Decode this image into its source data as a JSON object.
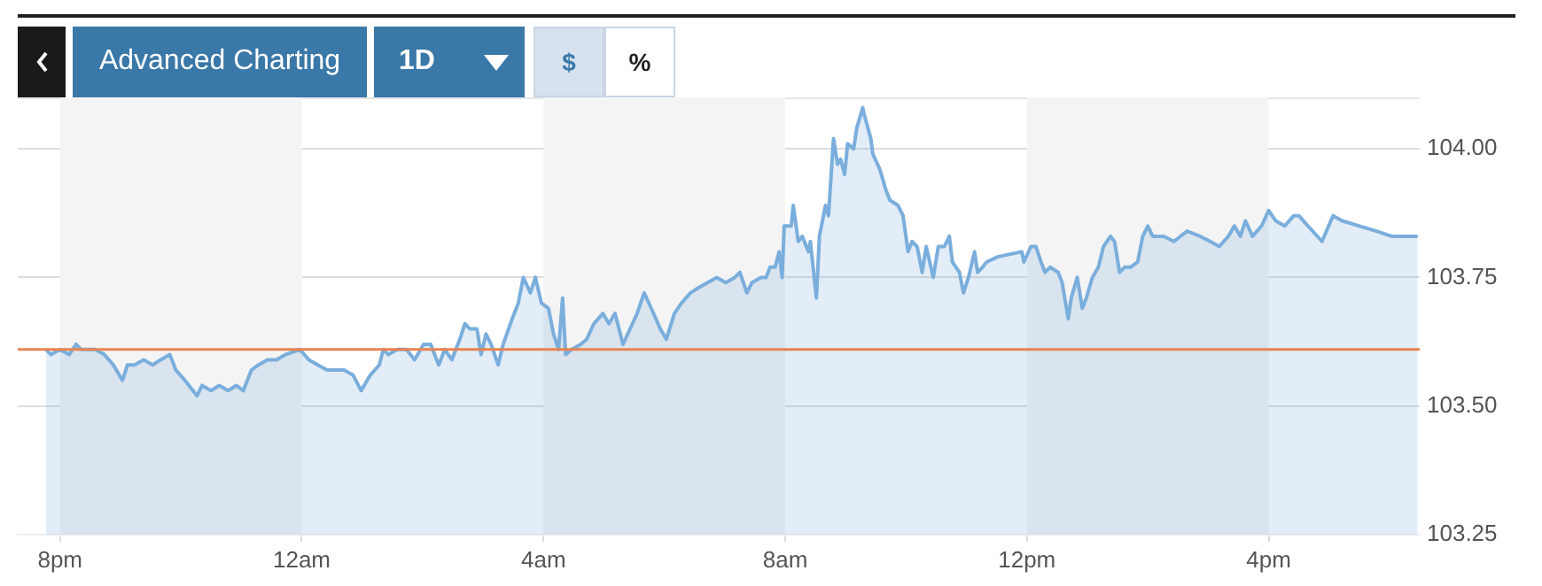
{
  "chart_data": {
    "type": "area",
    "annotations": [
      "Advanced Charting",
      "1D",
      "$",
      "%"
    ],
    "x": [
      "--01-01T19:46",
      "--01-01T19:51",
      "--01-01T20:00",
      "--01-01T20:09",
      "--01-01T20:16",
      "--01-01T20:21",
      "--01-01T20:35",
      "--01-01T20:44",
      "--01-01T20:53",
      "--01-01T21:02",
      "--01-01T21:07",
      "--01-01T21:14",
      "--01-01T21:23",
      "--01-01T21:32",
      "--01-01T21:40",
      "--01-01T21:49",
      "--01-01T21:55",
      "--01-01T22:04",
      "--01-01T22:12",
      "--01-01T22:16",
      "--01-01T22:21",
      "--01-01T22:30",
      "--01-01T22:38",
      "--01-01T22:47",
      "--01-01T22:55",
      "--01-01T23:02",
      "--01-01T23:10",
      "--01-01T23:17",
      "--01-01T23:26",
      "--01-01T23:35",
      "--01-01T23:44",
      "--01-01T23:58",
      "--01-02T00:07",
      "--01-02T00:16",
      "--01-02T00:25",
      "--01-02T00:33",
      "--01-02T00:42",
      "--01-02T00:51",
      "--01-02T00:59",
      "--01-02T01:08",
      "--01-02T01:17",
      "--01-02T01:21",
      "--01-02T01:26",
      "--01-02T01:35",
      "--01-02T01:44",
      "--01-02T01:52",
      "--01-02T02:01",
      "--01-02T02:08",
      "--01-02T02:16",
      "--01-02T02:22",
      "--01-02T02:29",
      "--01-02T02:37",
      "--01-02T02:42",
      "--01-02T02:47",
      "--01-02T02:54",
      "--01-02T02:58",
      "--01-02T03:03",
      "--01-02T03:08",
      "--01-02T03:15",
      "--01-02T03:20",
      "--01-02T03:29",
      "--01-02T03:35",
      "--01-02T03:40",
      "--01-02T03:47",
      "--01-02T03:52",
      "--01-02T03:58",
      "--01-02T04:05",
      "--01-02T04:10",
      "--01-02T04:15",
      "--01-02T04:19",
      "--01-02T04:22",
      "--01-02T04:28",
      "--01-02T04:37",
      "--01-02T04:43",
      "--01-02T04:50",
      "--01-02T04:59",
      "--01-02T05:05",
      "--01-02T05:11",
      "--01-02T05:19",
      "--01-02T05:26",
      "--01-02T05:33",
      "--01-02T05:40",
      "--01-02T05:47",
      "--01-02T05:56",
      "--01-02T06:02",
      "--01-02T06:10",
      "--01-02T06:17",
      "--01-02T06:26",
      "--01-02T06:34",
      "--01-02T06:43",
      "--01-02T06:52",
      "--01-02T07:01",
      "--01-02T07:10",
      "--01-02T07:15",
      "--01-02T07:22",
      "--01-02T07:27",
      "--01-02T07:36",
      "--01-02T07:41",
      "--01-02T07:45",
      "--01-02T07:50",
      "--01-02T07:54",
      "--01-02T07:57",
      "--01-02T07:59",
      "--01-02T08:06",
      "--01-02T08:08",
      "--01-02T08:13",
      "--01-02T08:17",
      "--01-02T08:23",
      "--01-02T08:25",
      "--01-02T08:31",
      "--01-02T08:34",
      "--01-02T08:40",
      "--01-02T08:43",
      "--01-02T08:48",
      "--01-02T08:52",
      "--01-02T08:55",
      "--01-02T08:59",
      "--01-02T09:02",
      "--01-02T09:08",
      "--01-02T09:11",
      "--01-02T09:17",
      "--01-02T09:18",
      "--01-02T09:25",
      "--01-02T09:27",
      "--01-02T09:34",
      "--01-02T09:40",
      "--01-02T09:44",
      "--01-02T09:52",
      "--01-02T09:57",
      "--01-02T10:02",
      "--01-02T10:06",
      "--01-02T10:11",
      "--01-02T10:16",
      "--01-02T10:20",
      "--01-02T10:27",
      "--01-02T10:32",
      "--01-02T10:38",
      "--01-02T10:43",
      "--01-02T10:46",
      "--01-02T10:53",
      "--01-02T10:57",
      "--01-02T11:02",
      "--01-02T11:08",
      "--01-02T11:11",
      "--01-02T11:16",
      "--01-02T11:20",
      "--01-02T11:31",
      "--01-02T11:55",
      "--01-02T11:57",
      "--01-02T12:04",
      "--01-02T12:09",
      "--01-02T12:14",
      "--01-02T12:18",
      "--01-02T12:23",
      "--01-02T12:31",
      "--01-02T12:35",
      "--01-02T12:41",
      "--01-02T12:44",
      "--01-02T12:50",
      "--01-02T12:55",
      "--01-02T12:59",
      "--01-02T13:05",
      "--01-02T13:11",
      "--01-02T13:16",
      "--01-02T13:23",
      "--01-02T13:27",
      "--01-02T13:32",
      "--01-02T13:37",
      "--01-02T13:43",
      "--01-02T13:50",
      "--01-02T13:55",
      "--01-02T14:00",
      "--01-02T14:05",
      "--01-02T14:16",
      "--01-02T14:26",
      "--01-02T14:39",
      "--01-02T14:52",
      "--01-02T15:02",
      "--01-02T15:11",
      "--01-02T15:20",
      "--01-02T15:26",
      "--01-02T15:32",
      "--01-02T15:37",
      "--01-02T15:44",
      "--01-02T15:53",
      "--01-02T16:00",
      "--01-02T16:07",
      "--01-02T16:16",
      "--01-02T16:25",
      "--01-02T16:30",
      "--01-02T16:39",
      "--01-02T16:53",
      "--01-02T17:04",
      "--01-02T17:13",
      "--01-02T17:30",
      "--01-02T17:47",
      "--01-02T18:02",
      "--01-02T18:05",
      "--01-02T18:28"
    ],
    "series": [
      {
        "color": "#7aaedc",
        "values": [
          103.61,
          103.6,
          103.61,
          103.6,
          103.62,
          103.61,
          103.61,
          103.6,
          103.58,
          103.55,
          103.58,
          103.58,
          103.59,
          103.58,
          103.59,
          103.6,
          103.57,
          103.55,
          103.53,
          103.52,
          103.54,
          103.53,
          103.54,
          103.53,
          103.54,
          103.53,
          103.57,
          103.58,
          103.59,
          103.59,
          103.6,
          103.61,
          103.59,
          103.58,
          103.57,
          103.57,
          103.57,
          103.56,
          103.53,
          103.56,
          103.58,
          103.61,
          103.6,
          103.61,
          103.61,
          103.59,
          103.62,
          103.62,
          103.58,
          103.61,
          103.59,
          103.63,
          103.66,
          103.65,
          103.65,
          103.6,
          103.64,
          103.62,
          103.58,
          103.62,
          103.67,
          103.7,
          103.75,
          103.72,
          103.75,
          103.7,
          103.69,
          103.64,
          103.61,
          103.71,
          103.6,
          103.61,
          103.62,
          103.63,
          103.66,
          103.68,
          103.66,
          103.68,
          103.62,
          103.65,
          103.68,
          103.72,
          103.69,
          103.65,
          103.63,
          103.68,
          103.7,
          103.72,
          103.73,
          103.74,
          103.75,
          103.74,
          103.75,
          103.76,
          103.72,
          103.74,
          103.75,
          103.75,
          103.77,
          103.77,
          103.8,
          103.75,
          103.85,
          103.85,
          103.89,
          103.82,
          103.83,
          103.8,
          103.82,
          103.71,
          103.83,
          103.89,
          103.87,
          104.02,
          103.97,
          103.98,
          103.95,
          104.01,
          104.0,
          104.04,
          104.08,
          104.07,
          104.02,
          103.99,
          103.96,
          103.92,
          103.9,
          103.89,
          103.87,
          103.8,
          103.82,
          103.81,
          103.76,
          103.81,
          103.75,
          103.81,
          103.81,
          103.83,
          103.78,
          103.76,
          103.72,
          103.75,
          103.8,
          103.76,
          103.77,
          103.78,
          103.79,
          103.8,
          103.78,
          103.81,
          103.81,
          103.78,
          103.76,
          103.77,
          103.76,
          103.74,
          103.67,
          103.71,
          103.75,
          103.69,
          103.71,
          103.75,
          103.77,
          103.81,
          103.83,
          103.82,
          103.76,
          103.77,
          103.77,
          103.78,
          103.83,
          103.85,
          103.83,
          103.83,
          103.82,
          103.84,
          103.83,
          103.82,
          103.81,
          103.83,
          103.85,
          103.83,
          103.86,
          103.83,
          103.85,
          103.88,
          103.86,
          103.85,
          103.87,
          103.87,
          103.85,
          103.82,
          103.87,
          103.86,
          103.85,
          103.84,
          103.83,
          103.83,
          103.83
        ]
      }
    ],
    "xlim": [
      "--01-01T19:18",
      "--01-02T18:30"
    ],
    "xticks": [
      {
        "value": "--01-01T20:00",
        "label": "8pm"
      },
      {
        "value": "--01-02T00:00",
        "label": "12am"
      },
      {
        "value": "--01-02T04:00",
        "label": "4am"
      },
      {
        "value": "--01-02T08:00",
        "label": "8am"
      },
      {
        "value": "--01-02T12:00",
        "label": "12pm"
      },
      {
        "value": "--01-02T16:00",
        "label": "4pm"
      }
    ],
    "ylim": [
      103.25,
      104.1
    ],
    "yticks": [
      {
        "value": 103.25,
        "label": "103.25"
      },
      {
        "value": 103.5,
        "label": "103.50"
      },
      {
        "value": 103.75,
        "label": "103.75"
      },
      {
        "value": 104,
        "label": "104.00"
      }
    ],
    "grid": "y",
    "legend": false,
    "marker": "none",
    "line_style": "solid",
    "ref_lines": [
      {
        "axis": "y",
        "value": 103.61,
        "color": "#e8834f"
      }
    ],
    "bands": [
      {
        "axis": "x",
        "from": "--01-01T20:00",
        "to": "--01-02T00:00",
        "color": "#f4f4f4"
      },
      {
        "axis": "x",
        "from": "--01-02T04:00",
        "to": "--01-02T08:00",
        "color": "#f4f4f4"
      },
      {
        "axis": "x",
        "from": "--01-02T12:00",
        "to": "--01-02T16:00",
        "color": "#f4f4f4"
      }
    ]
  }
}
